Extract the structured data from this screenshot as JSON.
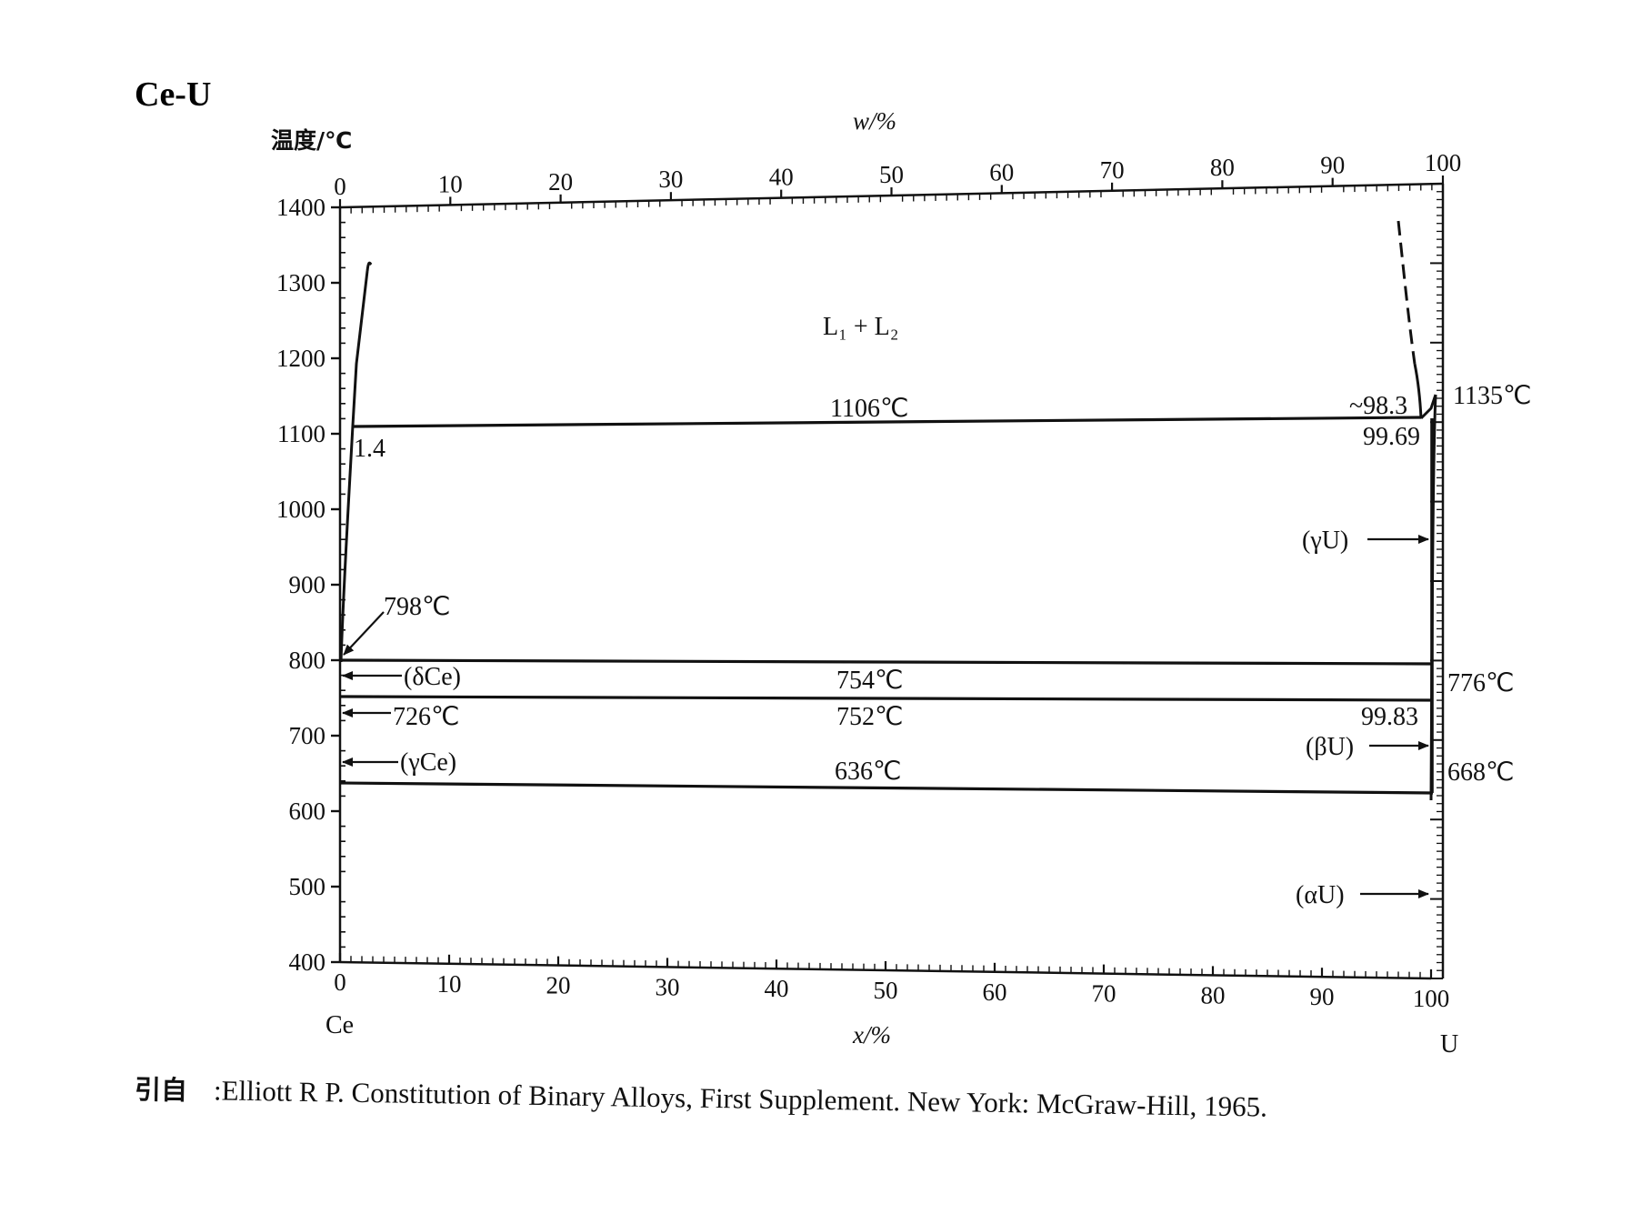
{
  "title": "Ce-U",
  "y_axis": {
    "label": "温度/℃",
    "ticks": [
      1400,
      1300,
      1200,
      1100,
      1000,
      900,
      800,
      700,
      600,
      500,
      400
    ],
    "range": [
      400,
      1400
    ]
  },
  "x_axis_top": {
    "label": "w/%",
    "ticks": [
      0,
      10,
      20,
      30,
      40,
      50,
      60,
      70,
      80,
      90,
      100
    ]
  },
  "x_axis_bottom": {
    "label": "x/%",
    "ticks": [
      0,
      10,
      20,
      30,
      40,
      50,
      60,
      70,
      80,
      90,
      100
    ],
    "left_element": "Ce",
    "right_element": "U"
  },
  "region_label": "L₁ + L₂",
  "isotherms": [
    {
      "label": "1106℃",
      "temp": 1106,
      "x_from": 1.4,
      "x_to": 98.3
    },
    {
      "label": "754℃",
      "temp": 754,
      "x_from": 0,
      "x_to": 100
    },
    {
      "label": "752℃",
      "temp": 752,
      "x_from": 0,
      "x_to": 99.83
    },
    {
      "label": "636℃",
      "temp": 636,
      "x_from": 0,
      "x_to": 100
    }
  ],
  "annotations": {
    "comp_1_4": "1.4",
    "comp_98_3": "~98.3",
    "comp_99_69": "99.69",
    "comp_99_83": "99.83",
    "t_1135": "1135℃",
    "t_798": "798℃",
    "t_776": "776℃",
    "t_668": "668℃",
    "t_726": "726℃"
  },
  "phases": {
    "delta_ce": "(δCe)",
    "gamma_ce": "(γCe)",
    "gamma_u": "(γU)",
    "beta_u": "(βU)",
    "alpha_u": "(αU)"
  },
  "citation": {
    "prefix": "引自",
    "text": ":Elliott R P.  Constitution of Binary Alloys, First Supplement.  New York: McGraw-Hill, 1965."
  },
  "colors": {
    "ink": "#111111",
    "background": "#ffffff"
  }
}
